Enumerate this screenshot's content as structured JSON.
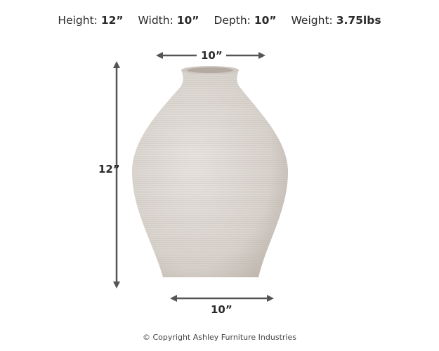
{
  "specs": [
    {
      "label": "Height:",
      "value": "12”"
    },
    {
      "label": "Width:",
      "value": "10”"
    },
    {
      "label": "Depth:",
      "value": "10”"
    },
    {
      "label": "Weight:",
      "value": "3.75lbs"
    }
  ],
  "dimensions": {
    "top": "10”",
    "side": "12”",
    "bottom": "10”"
  },
  "colors": {
    "arrow": "#555555",
    "vase": "#dcd6d0"
  },
  "copyright": "© Copyright Ashley Furniture Industries"
}
